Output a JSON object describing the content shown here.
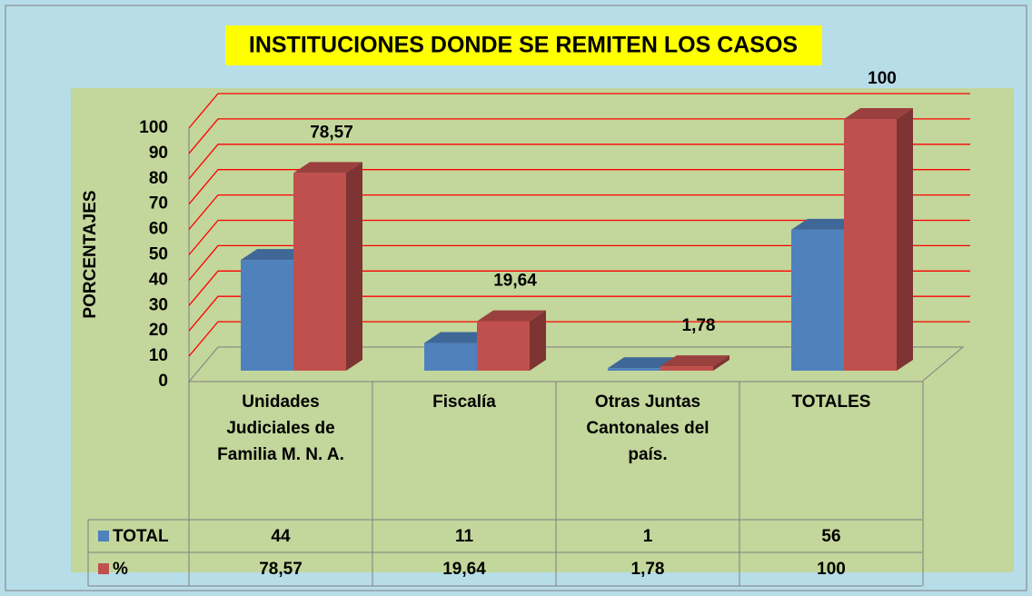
{
  "chart_data": {
    "type": "bar3d",
    "title": "INSTITUCIONES DONDE SE REMITEN LOS CASOS",
    "y_label": "PORCENTAJES",
    "categories": [
      "Unidades Judiciales de Familia M. N. A.",
      "Fiscalía",
      "Otras Juntas Cantonales del país.",
      "TOTALES"
    ],
    "series": [
      {
        "name": "TOTAL",
        "color": "#4f81bd",
        "values": [
          44,
          11,
          1,
          56
        ]
      },
      {
        "name": "%",
        "color": "#c0504d",
        "values": [
          78.57,
          19.64,
          1.78,
          100
        ],
        "value_labels": [
          "78,57",
          "19,64",
          "1,78",
          "100"
        ]
      }
    ],
    "ylim": [
      0,
      100
    ],
    "yticks": [
      0,
      10,
      20,
      30,
      40,
      50,
      60,
      70,
      80,
      90,
      100
    ],
    "grid": true,
    "grid_color": "#ff0000",
    "data_labels_series": 1
  }
}
